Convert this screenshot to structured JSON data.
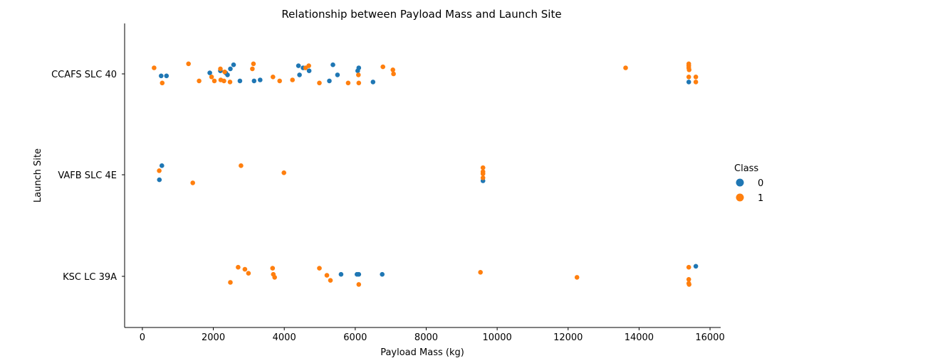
{
  "chart_data": {
    "type": "scatter",
    "title": "Relationship between Payload Mass and Launch Site",
    "xlabel": "Payload Mass (kg)",
    "ylabel": "Launch Site",
    "xlim": [
      -500,
      16300
    ],
    "xticks": [
      0,
      2000,
      4000,
      6000,
      8000,
      10000,
      12000,
      14000,
      16000
    ],
    "xtick_labels": [
      "0",
      "2000",
      "4000",
      "6000",
      "8000",
      "10000",
      "12000",
      "14000",
      "16000"
    ],
    "categories": [
      "CCAFS SLC 40",
      "VAFB SLC 4E",
      "KSC LC 39A"
    ],
    "grid": false,
    "legend": {
      "title": "Class",
      "placement": "right",
      "entries": [
        {
          "label": "0",
          "color": "#1f77b4"
        },
        {
          "label": "1",
          "color": "#ff7f0e"
        }
      ]
    },
    "series": [
      {
        "name": "0",
        "color": "#1f77b4",
        "points": [
          {
            "x": 530,
            "site": "CCAFS SLC 40",
            "jitter": 0.02
          },
          {
            "x": 680,
            "site": "CCAFS SLC 40",
            "jitter": 0.02
          },
          {
            "x": 1900,
            "site": "CCAFS SLC 40",
            "jitter": -0.01
          },
          {
            "x": 2200,
            "site": "CCAFS SLC 40",
            "jitter": -0.03
          },
          {
            "x": 2350,
            "site": "CCAFS SLC 40",
            "jitter": -0.01
          },
          {
            "x": 2400,
            "site": "CCAFS SLC 40",
            "jitter": 0.01
          },
          {
            "x": 2480,
            "site": "CCAFS SLC 40",
            "jitter": -0.05
          },
          {
            "x": 2570,
            "site": "CCAFS SLC 40",
            "jitter": -0.09
          },
          {
            "x": 2750,
            "site": "CCAFS SLC 40",
            "jitter": 0.07
          },
          {
            "x": 3150,
            "site": "CCAFS SLC 40",
            "jitter": 0.07
          },
          {
            "x": 3320,
            "site": "CCAFS SLC 40",
            "jitter": 0.06
          },
          {
            "x": 4400,
            "site": "CCAFS SLC 40",
            "jitter": -0.08
          },
          {
            "x": 4430,
            "site": "CCAFS SLC 40",
            "jitter": 0.01
          },
          {
            "x": 4530,
            "site": "CCAFS SLC 40",
            "jitter": -0.06
          },
          {
            "x": 4700,
            "site": "CCAFS SLC 40",
            "jitter": -0.03
          },
          {
            "x": 5270,
            "site": "CCAFS SLC 40",
            "jitter": 0.07
          },
          {
            "x": 5370,
            "site": "CCAFS SLC 40",
            "jitter": -0.09
          },
          {
            "x": 5500,
            "site": "CCAFS SLC 40",
            "jitter": 0.01
          },
          {
            "x": 6070,
            "site": "CCAFS SLC 40",
            "jitter": -0.03
          },
          {
            "x": 6100,
            "site": "CCAFS SLC 40",
            "jitter": -0.06
          },
          {
            "x": 6500,
            "site": "CCAFS SLC 40",
            "jitter": 0.08
          },
          {
            "x": 15400,
            "site": "CCAFS SLC 40",
            "jitter": 0.08
          },
          {
            "x": 550,
            "site": "VAFB SLC 4E",
            "jitter": -0.09
          },
          {
            "x": 480,
            "site": "VAFB SLC 4E",
            "jitter": 0.05
          },
          {
            "x": 9600,
            "site": "VAFB SLC 4E",
            "jitter": 0.06
          },
          {
            "x": 15600,
            "site": "KSC LC 39A",
            "jitter": -0.1
          },
          {
            "x": 5600,
            "site": "KSC LC 39A",
            "jitter": -0.02
          },
          {
            "x": 6050,
            "site": "KSC LC 39A",
            "jitter": -0.02
          },
          {
            "x": 6100,
            "site": "KSC LC 39A",
            "jitter": -0.02
          },
          {
            "x": 6760,
            "site": "KSC LC 39A",
            "jitter": -0.02
          }
        ]
      },
      {
        "name": "1",
        "color": "#ff7f0e",
        "points": [
          {
            "x": 330,
            "site": "CCAFS SLC 40",
            "jitter": -0.06
          },
          {
            "x": 560,
            "site": "CCAFS SLC 40",
            "jitter": 0.09
          },
          {
            "x": 1300,
            "site": "CCAFS SLC 40",
            "jitter": -0.1
          },
          {
            "x": 1600,
            "site": "CCAFS SLC 40",
            "jitter": 0.07
          },
          {
            "x": 1950,
            "site": "CCAFS SLC 40",
            "jitter": 0.03
          },
          {
            "x": 2030,
            "site": "CCAFS SLC 40",
            "jitter": 0.07
          },
          {
            "x": 2200,
            "site": "CCAFS SLC 40",
            "jitter": -0.05
          },
          {
            "x": 2210,
            "site": "CCAFS SLC 40",
            "jitter": 0.06
          },
          {
            "x": 2300,
            "site": "CCAFS SLC 40",
            "jitter": 0.07
          },
          {
            "x": 2320,
            "site": "CCAFS SLC 40",
            "jitter": -0.02
          },
          {
            "x": 2470,
            "site": "CCAFS SLC 40",
            "jitter": 0.08
          },
          {
            "x": 3100,
            "site": "CCAFS SLC 40",
            "jitter": -0.05
          },
          {
            "x": 3130,
            "site": "CCAFS SLC 40",
            "jitter": -0.1
          },
          {
            "x": 3680,
            "site": "CCAFS SLC 40",
            "jitter": 0.03
          },
          {
            "x": 3870,
            "site": "CCAFS SLC 40",
            "jitter": 0.07
          },
          {
            "x": 4230,
            "site": "CCAFS SLC 40",
            "jitter": 0.06
          },
          {
            "x": 4600,
            "site": "CCAFS SLC 40",
            "jitter": -0.06
          },
          {
            "x": 4690,
            "site": "CCAFS SLC 40",
            "jitter": -0.08
          },
          {
            "x": 4990,
            "site": "CCAFS SLC 40",
            "jitter": 0.09
          },
          {
            "x": 5800,
            "site": "CCAFS SLC 40",
            "jitter": 0.09
          },
          {
            "x": 6090,
            "site": "CCAFS SLC 40",
            "jitter": 0.01
          },
          {
            "x": 6100,
            "site": "CCAFS SLC 40",
            "jitter": 0.09
          },
          {
            "x": 6780,
            "site": "CCAFS SLC 40",
            "jitter": -0.07
          },
          {
            "x": 7060,
            "site": "CCAFS SLC 40",
            "jitter": -0.04
          },
          {
            "x": 7080,
            "site": "CCAFS SLC 40",
            "jitter": 0.0
          },
          {
            "x": 13620,
            "site": "CCAFS SLC 40",
            "jitter": -0.06
          },
          {
            "x": 15400,
            "site": "CCAFS SLC 40",
            "jitter": -0.1
          },
          {
            "x": 15400,
            "site": "CCAFS SLC 40",
            "jitter": -0.08
          },
          {
            "x": 15400,
            "site": "CCAFS SLC 40",
            "jitter": -0.06
          },
          {
            "x": 15410,
            "site": "CCAFS SLC 40",
            "jitter": -0.04
          },
          {
            "x": 15400,
            "site": "CCAFS SLC 40",
            "jitter": 0.03
          },
          {
            "x": 15600,
            "site": "CCAFS SLC 40",
            "jitter": 0.03
          },
          {
            "x": 15600,
            "site": "CCAFS SLC 40",
            "jitter": 0.08
          },
          {
            "x": 475,
            "site": "VAFB SLC 4E",
            "jitter": -0.04
          },
          {
            "x": 1420,
            "site": "VAFB SLC 4E",
            "jitter": 0.08
          },
          {
            "x": 2780,
            "site": "VAFB SLC 4E",
            "jitter": -0.09
          },
          {
            "x": 3990,
            "site": "VAFB SLC 4E",
            "jitter": -0.02
          },
          {
            "x": 9600,
            "site": "VAFB SLC 4E",
            "jitter": -0.07
          },
          {
            "x": 9600,
            "site": "VAFB SLC 4E",
            "jitter": -0.03
          },
          {
            "x": 9600,
            "site": "VAFB SLC 4E",
            "jitter": -0.01
          },
          {
            "x": 9600,
            "site": "VAFB SLC 4E",
            "jitter": 0.03
          },
          {
            "x": 2700,
            "site": "KSC LC 39A",
            "jitter": -0.09
          },
          {
            "x": 2890,
            "site": "KSC LC 39A",
            "jitter": -0.07
          },
          {
            "x": 2990,
            "site": "KSC LC 39A",
            "jitter": -0.03
          },
          {
            "x": 3670,
            "site": "KSC LC 39A",
            "jitter": -0.08
          },
          {
            "x": 3690,
            "site": "KSC LC 39A",
            "jitter": -0.02
          },
          {
            "x": 3730,
            "site": "KSC LC 39A",
            "jitter": 0.01
          },
          {
            "x": 2480,
            "site": "KSC LC 39A",
            "jitter": 0.06
          },
          {
            "x": 4990,
            "site": "KSC LC 39A",
            "jitter": -0.08
          },
          {
            "x": 5200,
            "site": "KSC LC 39A",
            "jitter": -0.01
          },
          {
            "x": 5300,
            "site": "KSC LC 39A",
            "jitter": 0.04
          },
          {
            "x": 6100,
            "site": "KSC LC 39A",
            "jitter": 0.08
          },
          {
            "x": 9530,
            "site": "KSC LC 39A",
            "jitter": -0.04
          },
          {
            "x": 12250,
            "site": "KSC LC 39A",
            "jitter": 0.01
          },
          {
            "x": 15400,
            "site": "KSC LC 39A",
            "jitter": -0.09
          },
          {
            "x": 15400,
            "site": "KSC LC 39A",
            "jitter": 0.03
          },
          {
            "x": 15400,
            "site": "KSC LC 39A",
            "jitter": 0.07
          },
          {
            "x": 15410,
            "site": "KSC LC 39A",
            "jitter": 0.08
          }
        ]
      }
    ]
  }
}
